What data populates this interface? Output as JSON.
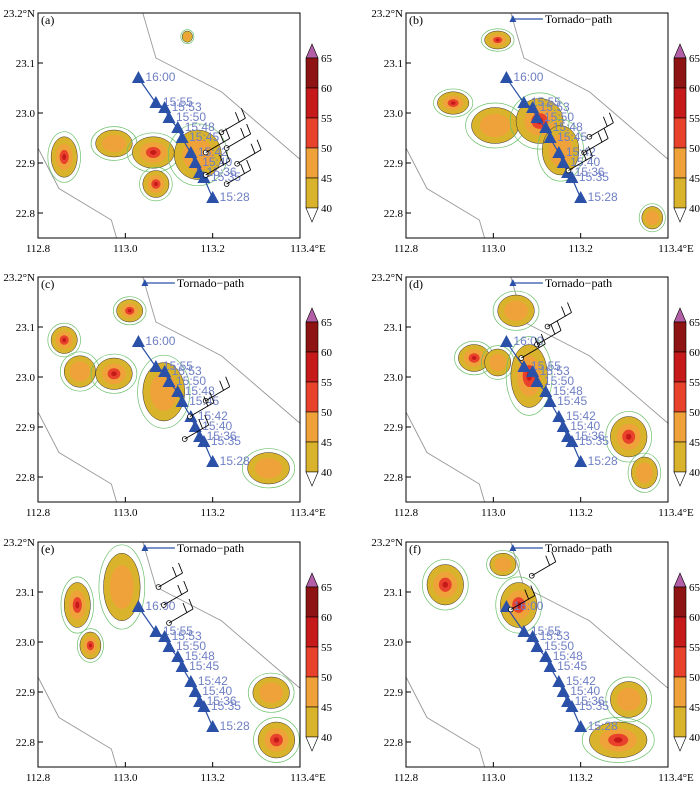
{
  "chart_data": {
    "type": "map-panels",
    "x_ticks": [
      "112.8",
      "113.0",
      "113.2",
      "113.4°E"
    ],
    "y_ticks": [
      "23.2°N",
      "23.1",
      "23.0",
      "22.9",
      "22.8"
    ],
    "xlim": [
      112.8,
      113.4
    ],
    "ylim": [
      22.75,
      23.2
    ],
    "colorbar": {
      "levels": [
        40,
        45,
        50,
        55,
        60,
        65
      ],
      "tick_labels": [
        "65",
        "60",
        "55",
        "50",
        "45",
        "40"
      ],
      "colors": [
        "#d8b32b",
        "#f0a23a",
        "#e8412c",
        "#c61a1a",
        "#8e1414",
        "#b35fa8"
      ]
    },
    "tornado_path": {
      "legend_label": "Tornado−path",
      "color": "#2a50a8",
      "points": [
        {
          "time": "16:00",
          "lon": 113.03,
          "lat": 23.07
        },
        {
          "time": "15:55",
          "lon": 113.07,
          "lat": 23.02
        },
        {
          "time": "15:53",
          "lon": 113.09,
          "lat": 23.01
        },
        {
          "time": "15:50",
          "lon": 113.1,
          "lat": 22.99
        },
        {
          "time": "15:48",
          "lon": 113.12,
          "lat": 22.97
        },
        {
          "time": "15:45",
          "lon": 113.13,
          "lat": 22.95
        },
        {
          "time": "15:42",
          "lon": 113.15,
          "lat": 22.92
        },
        {
          "time": "15:40",
          "lon": 113.16,
          "lat": 22.9
        },
        {
          "time": "15:36",
          "lon": 113.17,
          "lat": 22.88
        },
        {
          "time": "15:35",
          "lon": 113.18,
          "lat": 22.87
        },
        {
          "time": "15:28",
          "lon": 113.2,
          "lat": 22.83
        }
      ]
    },
    "panels": [
      {
        "label": "(a)",
        "legend": false
      },
      {
        "label": "(b)",
        "legend": true
      },
      {
        "label": "(c)",
        "legend": true
      },
      {
        "label": "(d)",
        "legend": true
      },
      {
        "label": "(e)",
        "legend": true
      },
      {
        "label": "(f)",
        "legend": true
      }
    ]
  }
}
